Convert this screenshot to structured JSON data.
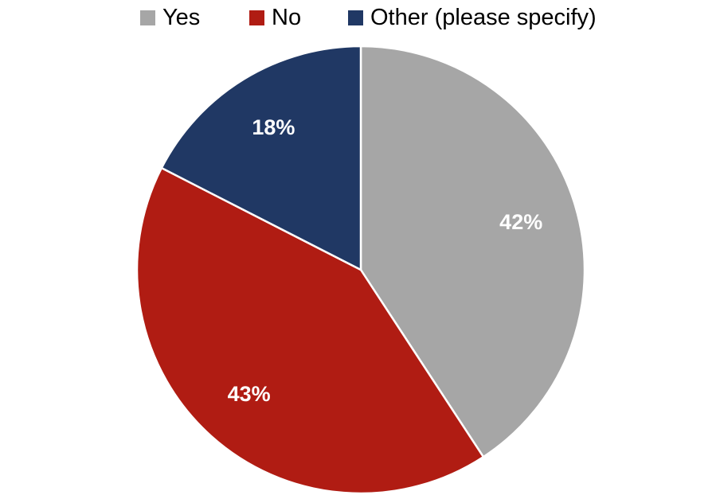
{
  "chart_data": {
    "type": "pie",
    "legend_position": "top",
    "series": [
      {
        "name": "Yes",
        "value": 42,
        "label": "42%",
        "color": "#A6A6A6"
      },
      {
        "name": "No",
        "value": 43,
        "label": "43%",
        "color": "#B01C13"
      },
      {
        "name": "Other (please specify)",
        "value": 18,
        "label": "18%",
        "color": "#203864"
      }
    ]
  }
}
